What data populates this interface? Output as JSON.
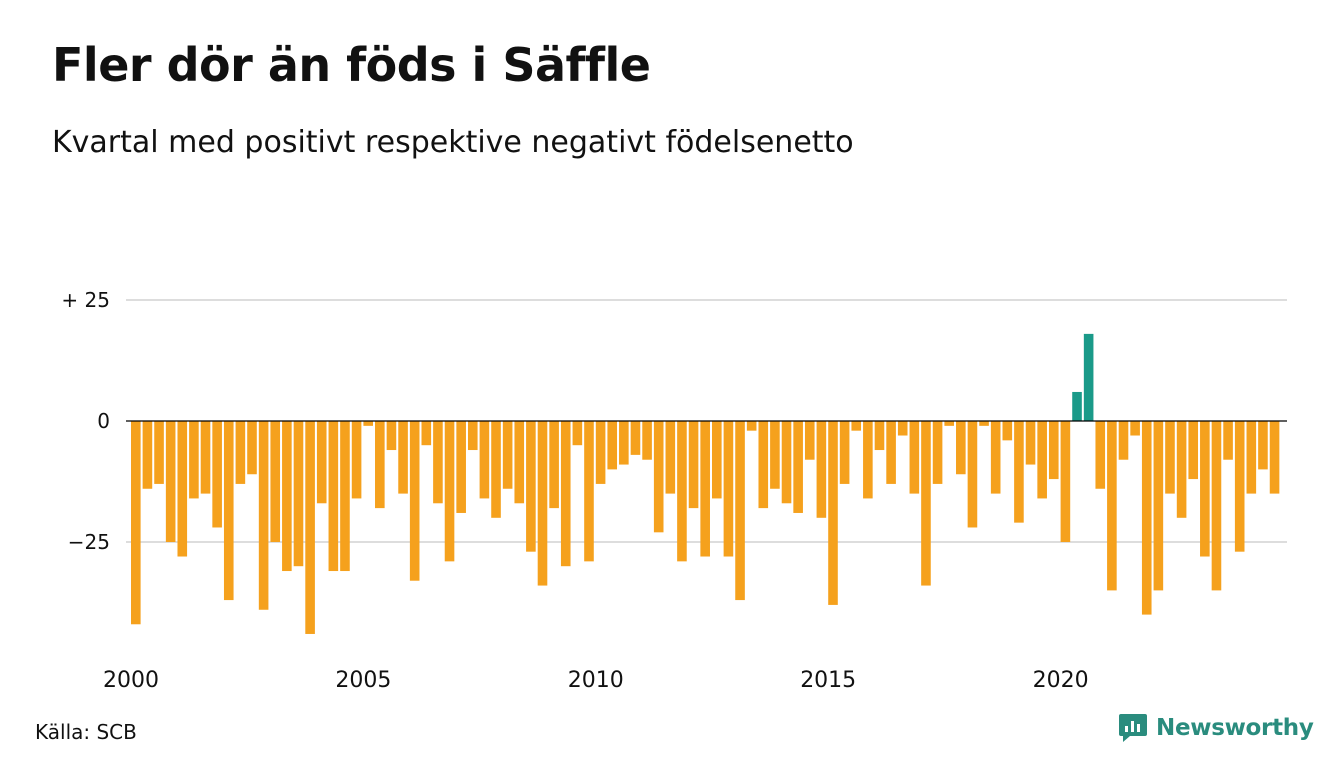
{
  "title": "Fler dör än föds i Säffle",
  "subtitle": "Kvartal med positivt respektive negativt födelsenetto",
  "source": "Källa: SCB",
  "brand": {
    "name": "Newsworthy",
    "icon": "newsworthy-logo-icon",
    "color": "#2a8c7e"
  },
  "colors": {
    "negative": "#f5a11d",
    "positive": "#1a9a89",
    "grid": "#dddddd",
    "zero_line": "#000000"
  },
  "chart_data": {
    "type": "bar",
    "ylim": [
      -47,
      27
    ],
    "yticks": [
      {
        "value": 25,
        "label": "+ 25"
      },
      {
        "value": 0,
        "label": "0"
      },
      {
        "value": -25,
        "label": "−25"
      }
    ],
    "xticks": [
      {
        "year": 2000,
        "label": "2000"
      },
      {
        "year": 2005,
        "label": "2005"
      },
      {
        "year": 2010,
        "label": "2010"
      },
      {
        "year": 2015,
        "label": "2015"
      },
      {
        "year": 2020,
        "label": "2020"
      }
    ],
    "start": "2000 Q1",
    "grid": true,
    "values": [
      -42,
      -14,
      -13,
      -25,
      -28,
      -16,
      -15,
      -22,
      -37,
      -13,
      -11,
      -39,
      -25,
      -31,
      -30,
      -44,
      -17,
      -31,
      -31,
      -16,
      -1,
      -18,
      -6,
      -15,
      -33,
      -5,
      -17,
      -29,
      -19,
      -6,
      -16,
      -20,
      -14,
      -17,
      -27,
      -34,
      -18,
      -30,
      -5,
      -29,
      -13,
      -10,
      -9,
      -7,
      -8,
      -23,
      -15,
      -29,
      -18,
      -28,
      -16,
      -28,
      -37,
      -2,
      -18,
      -14,
      -17,
      -19,
      -8,
      -20,
      -38,
      -13,
      -2,
      -16,
      -6,
      -13,
      -3,
      -15,
      -34,
      -13,
      -1,
      -11,
      -22,
      -1,
      -15,
      -4,
      -21,
      -9,
      -16,
      -12,
      -25,
      6,
      18,
      -14,
      -35,
      -8,
      -3,
      -40,
      -35,
      -15,
      -20,
      -12,
      -28,
      -35,
      -8,
      -27,
      -15,
      -10,
      -15
    ]
  }
}
